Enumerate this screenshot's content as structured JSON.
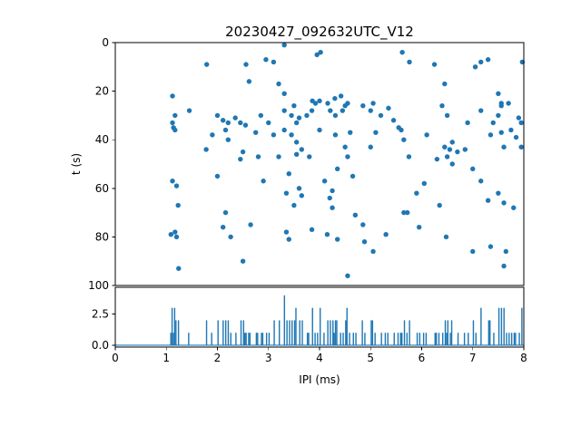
{
  "figure": {
    "background": "#ffffff",
    "accent_color": "#1f77b4"
  },
  "chart_data": [
    {
      "type": "scatter",
      "title": "20230427_092632UTC_V12",
      "xlabel": "",
      "ylabel": "t (s)",
      "xlim": [
        0,
        8
      ],
      "ylim": [
        0,
        100
      ],
      "y_inverted": true,
      "yticks": [
        0,
        20,
        40,
        60,
        80,
        100
      ],
      "marker_color": "#1f77b4",
      "grid": false,
      "legend": "none",
      "points": [
        [
          3.31,
          1
        ],
        [
          4.02,
          4
        ],
        [
          5.62,
          4
        ],
        [
          3.95,
          5
        ],
        [
          2.95,
          7
        ],
        [
          7.3,
          7
        ],
        [
          3.1,
          8
        ],
        [
          7.16,
          8
        ],
        [
          5.76,
          8
        ],
        [
          7.97,
          8
        ],
        [
          1.79,
          9
        ],
        [
          2.56,
          9
        ],
        [
          6.25,
          9
        ],
        [
          7.05,
          10
        ],
        [
          2.62,
          16
        ],
        [
          3.2,
          17
        ],
        [
          6.45,
          17
        ],
        [
          3.31,
          21
        ],
        [
          7.5,
          21
        ],
        [
          1.12,
          22
        ],
        [
          4.42,
          22
        ],
        [
          4.3,
          23
        ],
        [
          3.86,
          24
        ],
        [
          4.0,
          24
        ],
        [
          3.92,
          25
        ],
        [
          4.16,
          25
        ],
        [
          4.55,
          25
        ],
        [
          5.05,
          25
        ],
        [
          7.56,
          25
        ],
        [
          7.7,
          25
        ],
        [
          3.5,
          26
        ],
        [
          4.5,
          26
        ],
        [
          6.4,
          26
        ],
        [
          7.56,
          26
        ],
        [
          4.85,
          26
        ],
        [
          5.35,
          27
        ],
        [
          1.45,
          28
        ],
        [
          3.31,
          28
        ],
        [
          3.85,
          28
        ],
        [
          4.21,
          28
        ],
        [
          4.45,
          28
        ],
        [
          5.0,
          28
        ],
        [
          7.16,
          28
        ],
        [
          1.17,
          30
        ],
        [
          2.0,
          30
        ],
        [
          2.85,
          30
        ],
        [
          3.45,
          30
        ],
        [
          3.75,
          30
        ],
        [
          4.31,
          30
        ],
        [
          5.2,
          30
        ],
        [
          6.5,
          30
        ],
        [
          7.5,
          30
        ],
        [
          2.35,
          31
        ],
        [
          3.6,
          31
        ],
        [
          7.9,
          31
        ],
        [
          2.11,
          32
        ],
        [
          5.45,
          32
        ],
        [
          1.12,
          33
        ],
        [
          2.21,
          33
        ],
        [
          2.45,
          33
        ],
        [
          3.0,
          33
        ],
        [
          3.55,
          33
        ],
        [
          6.9,
          33
        ],
        [
          7.4,
          33
        ],
        [
          7.95,
          33
        ],
        [
          2.55,
          34
        ],
        [
          1.14,
          35
        ],
        [
          5.55,
          35
        ],
        [
          1.17,
          36
        ],
        [
          2.16,
          36
        ],
        [
          3.31,
          36
        ],
        [
          4.0,
          36
        ],
        [
          5.6,
          36
        ],
        [
          7.75,
          36
        ],
        [
          2.75,
          37
        ],
        [
          4.6,
          37
        ],
        [
          5.1,
          37
        ],
        [
          7.56,
          37
        ],
        [
          1.9,
          38
        ],
        [
          3.1,
          38
        ],
        [
          3.45,
          38
        ],
        [
          4.31,
          38
        ],
        [
          6.1,
          38
        ],
        [
          7.35,
          38
        ],
        [
          7.85,
          39
        ],
        [
          2.21,
          40
        ],
        [
          5.65,
          40
        ],
        [
          3.55,
          41
        ],
        [
          6.6,
          41
        ],
        [
          4.5,
          43
        ],
        [
          5.0,
          43
        ],
        [
          6.45,
          43
        ],
        [
          7.61,
          43
        ],
        [
          7.95,
          43
        ],
        [
          3.65,
          44
        ],
        [
          6.55,
          44
        ],
        [
          6.85,
          44
        ],
        [
          1.78,
          44
        ],
        [
          2.5,
          45
        ],
        [
          6.7,
          45
        ],
        [
          3.55,
          46
        ],
        [
          2.8,
          47
        ],
        [
          3.2,
          47
        ],
        [
          3.8,
          47
        ],
        [
          4.55,
          47
        ],
        [
          5.75,
          47
        ],
        [
          6.5,
          47
        ],
        [
          2.45,
          48
        ],
        [
          6.3,
          48
        ],
        [
          6.6,
          50
        ],
        [
          4.35,
          52
        ],
        [
          7.0,
          52
        ],
        [
          3.4,
          54
        ],
        [
          2.0,
          55
        ],
        [
          4.65,
          55
        ],
        [
          1.12,
          57
        ],
        [
          2.9,
          57
        ],
        [
          4.1,
          57
        ],
        [
          7.16,
          57
        ],
        [
          6.05,
          58
        ],
        [
          1.2,
          59
        ],
        [
          3.6,
          60
        ],
        [
          4.25,
          61
        ],
        [
          3.35,
          62
        ],
        [
          5.9,
          62
        ],
        [
          7.5,
          62
        ],
        [
          3.65,
          63
        ],
        [
          4.2,
          64
        ],
        [
          7.3,
          65
        ],
        [
          7.61,
          66
        ],
        [
          1.23,
          67
        ],
        [
          3.5,
          67
        ],
        [
          6.35,
          67
        ],
        [
          4.25,
          68
        ],
        [
          7.8,
          68
        ],
        [
          2.16,
          70
        ],
        [
          5.65,
          70
        ],
        [
          5.72,
          70
        ],
        [
          4.7,
          71
        ],
        [
          2.65,
          75
        ],
        [
          4.85,
          75
        ],
        [
          2.11,
          76
        ],
        [
          5.95,
          76
        ],
        [
          3.85,
          77
        ],
        [
          1.17,
          78
        ],
        [
          3.35,
          78
        ],
        [
          1.09,
          79
        ],
        [
          4.15,
          79
        ],
        [
          5.3,
          79
        ],
        [
          1.2,
          80
        ],
        [
          2.26,
          80
        ],
        [
          6.48,
          80
        ],
        [
          3.4,
          81
        ],
        [
          4.35,
          81
        ],
        [
          4.88,
          82
        ],
        [
          7.35,
          84
        ],
        [
          5.05,
          86
        ],
        [
          7.0,
          86
        ],
        [
          7.65,
          86
        ],
        [
          2.5,
          90
        ],
        [
          7.61,
          92
        ],
        [
          1.24,
          93
        ],
        [
          4.55,
          96
        ]
      ]
    },
    {
      "type": "histogram",
      "title": "",
      "xlabel": "IPI (ms)",
      "ylabel": "",
      "xlim": [
        0,
        8
      ],
      "ylim": [
        -0.15,
        4.65
      ],
      "xticks": [
        0,
        1,
        2,
        3,
        4,
        5,
        6,
        7,
        8
      ],
      "yticks": [
        [
          0,
          "0.0"
        ],
        [
          2.5,
          "2.5"
        ]
      ],
      "bin_width": 0.025,
      "derived_from": "counts of scatter-series IPI (x) values per bin",
      "bar_color": "#1f77b4",
      "grid": false,
      "legend": "none"
    }
  ]
}
